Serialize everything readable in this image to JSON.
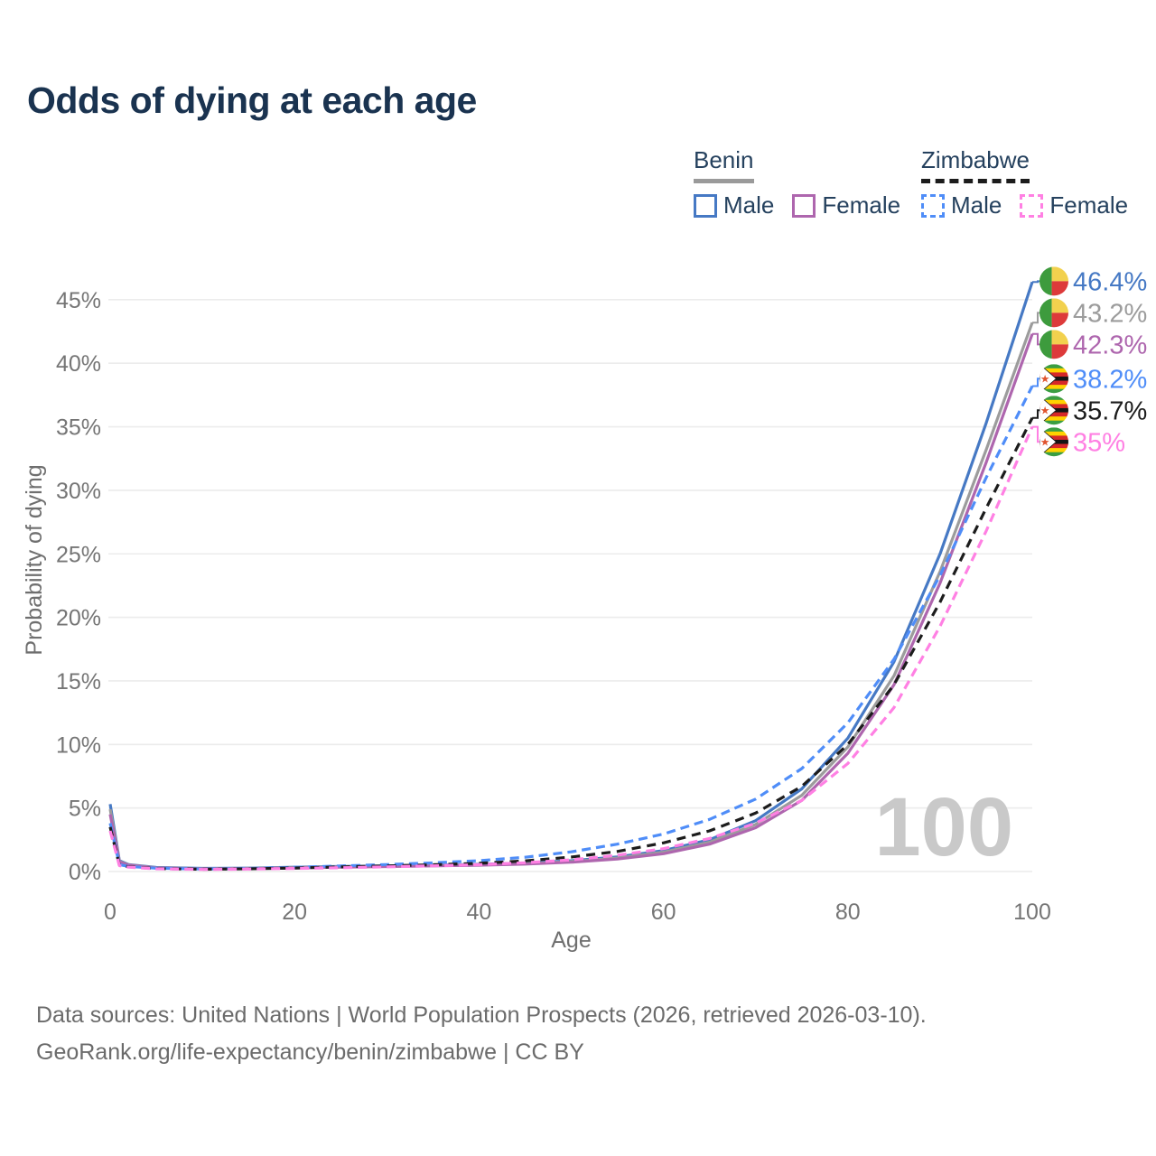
{
  "title": "Odds of dying at each age",
  "watermark_age": "100",
  "legend": {
    "groups": [
      {
        "key": "benin",
        "label": "Benin",
        "line_style": "solid",
        "line_color": "#9a9a9a",
        "items": [
          {
            "key": "benin-male",
            "label": "Male",
            "color": "#4679c4"
          },
          {
            "key": "benin-female",
            "label": "Female",
            "color": "#ae66ae"
          }
        ]
      },
      {
        "key": "zimbabwe",
        "label": "Zimbabwe",
        "line_style": "dashed",
        "line_color": "#1c1c1c",
        "items": [
          {
            "key": "zimbabwe-male",
            "label": "Male",
            "color": "#4f8df8"
          },
          {
            "key": "zimbabwe-female",
            "label": "Female",
            "color": "#ff80e3"
          }
        ]
      }
    ]
  },
  "footer": {
    "line1": "Data sources: United Nations | World Population Prospects (2026, retrieved 2026-03-10).",
    "line2": "GeoRank.org/life-expectancy/benin/zimbabwe | CC BY"
  },
  "chart_data": {
    "type": "line",
    "title": "Odds of dying at each age",
    "xlabel": "Age",
    "ylabel": "Probability of dying",
    "xlim": [
      0,
      100
    ],
    "ylim": [
      0,
      46.5
    ],
    "grid": true,
    "legend_position": "top-right",
    "x_ticks": [
      0,
      20,
      40,
      60,
      80,
      100
    ],
    "y_ticks": [
      {
        "value": 0,
        "label": "0%"
      },
      {
        "value": 5,
        "label": "5%"
      },
      {
        "value": 10,
        "label": "10%"
      },
      {
        "value": 15,
        "label": "15%"
      },
      {
        "value": 20,
        "label": "20%"
      },
      {
        "value": 25,
        "label": "25%"
      },
      {
        "value": 30,
        "label": "30%"
      },
      {
        "value": 35,
        "label": "35%"
      },
      {
        "value": 40,
        "label": "40%"
      },
      {
        "value": 45,
        "label": "45%"
      }
    ],
    "x": [
      0,
      1,
      2,
      5,
      10,
      15,
      20,
      25,
      30,
      35,
      40,
      45,
      50,
      55,
      60,
      65,
      70,
      75,
      80,
      85,
      90,
      95,
      100
    ],
    "series": [
      {
        "key": "benin-male",
        "name": "Benin Male",
        "country": "Benin",
        "sex": "Male",
        "color": "#4679c4",
        "dash": null,
        "flag": "benin",
        "end_label": "46.4%",
        "values": [
          5.3,
          0.85,
          0.55,
          0.32,
          0.25,
          0.27,
          0.34,
          0.4,
          0.45,
          0.5,
          0.57,
          0.67,
          0.85,
          1.15,
          1.65,
          2.5,
          4.0,
          6.5,
          10.5,
          16.5,
          25.0,
          35.3,
          46.4
        ]
      },
      {
        "key": "benin-both",
        "name": "Benin Both sexes",
        "country": "Benin",
        "sex": "Both",
        "color": "#9c9c9c",
        "dash": null,
        "flag": "benin",
        "end_label": "43.2%",
        "values": [
          4.9,
          0.8,
          0.52,
          0.3,
          0.23,
          0.25,
          0.31,
          0.37,
          0.42,
          0.47,
          0.53,
          0.62,
          0.79,
          1.06,
          1.52,
          2.3,
          3.7,
          6.0,
          9.8,
          15.4,
          23.6,
          33.2,
          43.2
        ]
      },
      {
        "key": "benin-female",
        "name": "Benin Female",
        "country": "Benin",
        "sex": "Female",
        "color": "#ae66ae",
        "dash": null,
        "flag": "benin",
        "end_label": "42.3%",
        "values": [
          4.5,
          0.75,
          0.5,
          0.28,
          0.21,
          0.23,
          0.28,
          0.34,
          0.39,
          0.44,
          0.5,
          0.58,
          0.73,
          0.98,
          1.4,
          2.15,
          3.45,
          5.6,
          9.3,
          14.7,
          22.7,
          32.2,
          42.3
        ]
      },
      {
        "key": "zimbabwe-male",
        "name": "Zimbabwe Male",
        "country": "Zimbabwe",
        "sex": "Male",
        "color": "#4f8df8",
        "dash": "10 6",
        "flag": "zimbabwe",
        "end_label": "38.2%",
        "values": [
          3.8,
          0.55,
          0.4,
          0.26,
          0.2,
          0.24,
          0.33,
          0.44,
          0.55,
          0.68,
          0.85,
          1.12,
          1.55,
          2.15,
          2.95,
          4.1,
          5.7,
          8.1,
          11.7,
          16.7,
          23.3,
          31.0,
          38.2
        ]
      },
      {
        "key": "zimbabwe-both",
        "name": "Zimbabwe Both sexes",
        "country": "Zimbabwe",
        "sex": "Both",
        "color": "#1c1c1c",
        "dash": "10 7",
        "flag": "zimbabwe",
        "end_label": "35.7%",
        "values": [
          3.5,
          0.5,
          0.37,
          0.23,
          0.18,
          0.21,
          0.28,
          0.36,
          0.44,
          0.53,
          0.65,
          0.84,
          1.14,
          1.58,
          2.25,
          3.2,
          4.6,
          6.7,
          10.0,
          14.7,
          21.2,
          28.6,
          35.7
        ]
      },
      {
        "key": "zimbabwe-female",
        "name": "Zimbabwe Female",
        "country": "Zimbabwe",
        "sex": "Female",
        "color": "#ff80e3",
        "dash": "10 6",
        "flag": "zimbabwe",
        "end_label": "35%",
        "values": [
          3.2,
          0.46,
          0.34,
          0.21,
          0.16,
          0.19,
          0.24,
          0.3,
          0.37,
          0.45,
          0.54,
          0.69,
          0.92,
          1.28,
          1.8,
          2.6,
          3.8,
          5.6,
          8.5,
          12.9,
          19.3,
          26.8,
          35.0
        ]
      }
    ]
  },
  "colors": {
    "title": "#1a3350",
    "gridline": "#ececec",
    "tick_text": "#757575",
    "axis_title_text": "#6f6f6f",
    "watermark": "#c9c9c9",
    "legend_text": "#25415e",
    "footer_text": "#6b6b6b",
    "flag_benin": {
      "green": "#3d9b3d",
      "yellow": "#f2d14e",
      "red": "#dd3a3a"
    },
    "flag_zimbabwe": {
      "green": "#3a9e42",
      "yellow": "#ffd200",
      "red": "#d62828",
      "black": "#151515",
      "white": "#ffffff",
      "star": "#e0542e"
    }
  }
}
